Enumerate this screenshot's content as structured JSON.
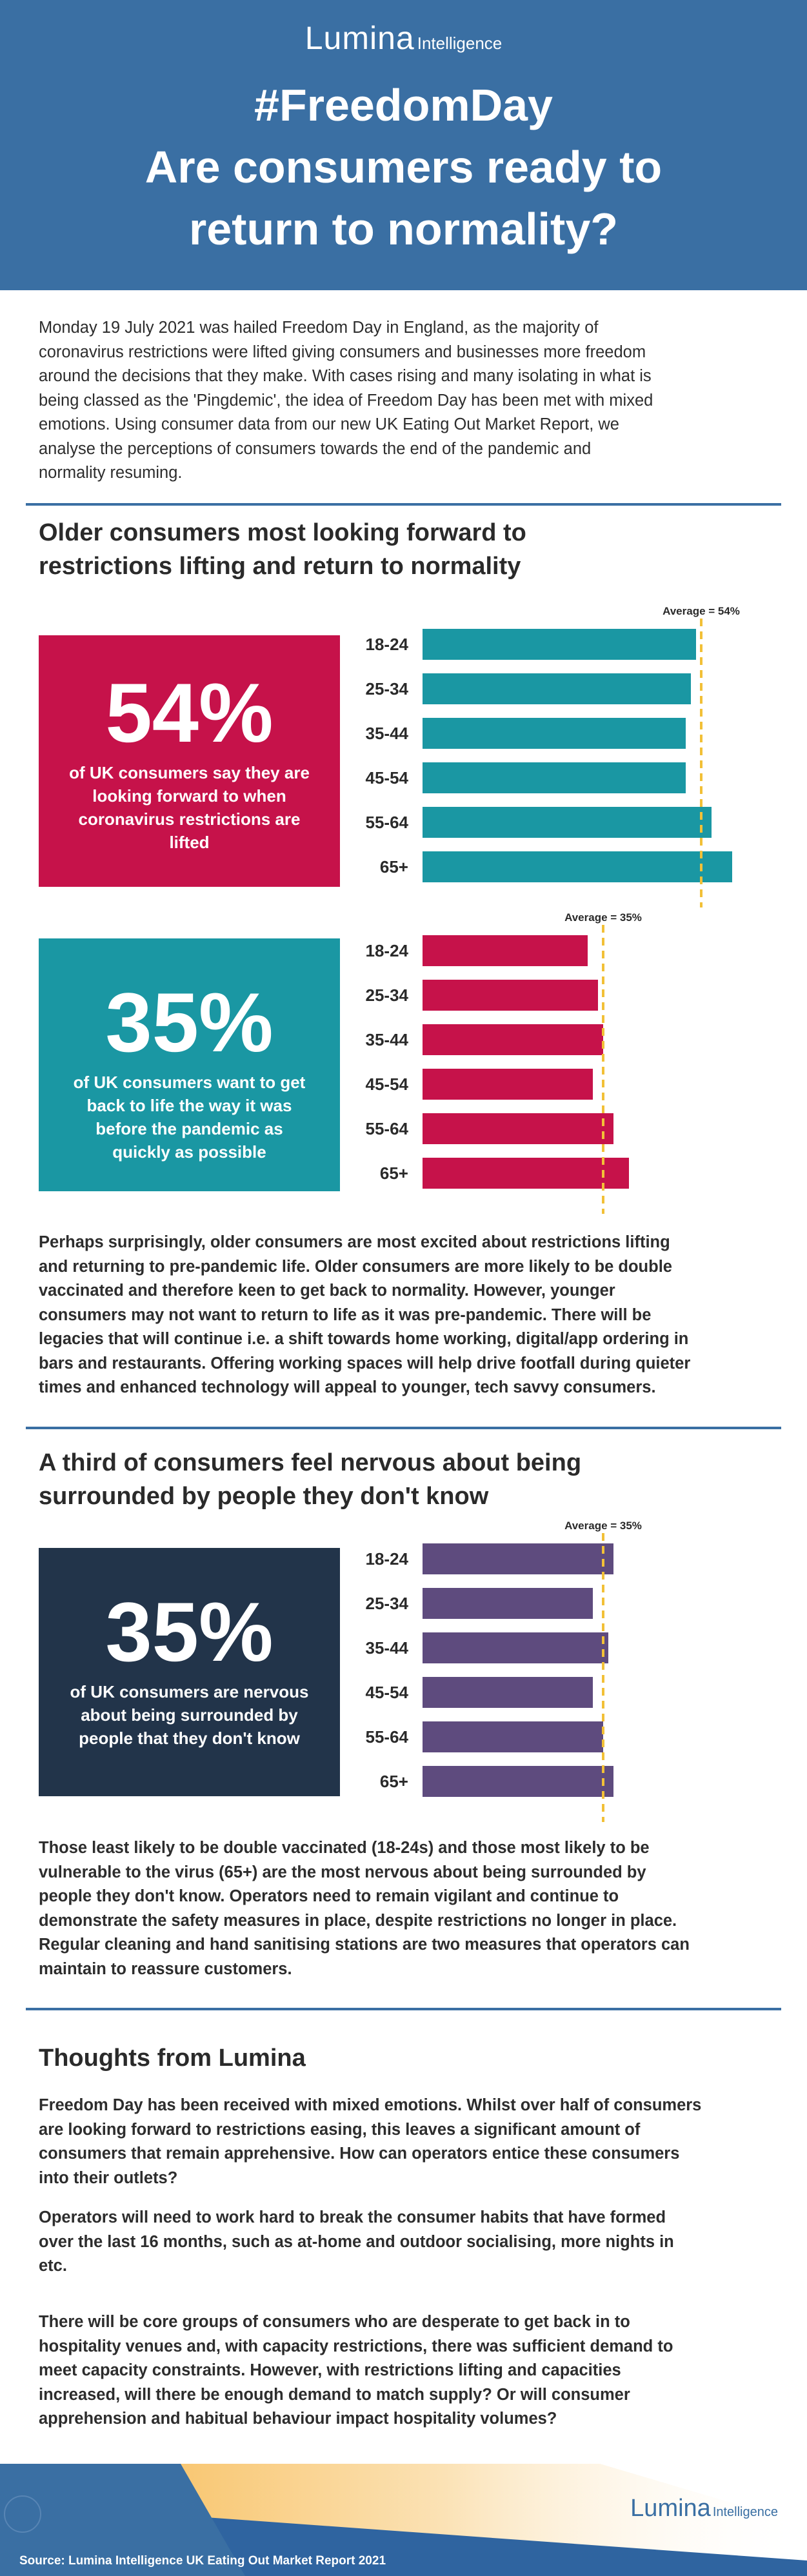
{
  "header": {
    "logo_brand": "Lumina",
    "logo_sub": "Intelligence",
    "title_line1": "#FreedomDay",
    "title_line2": "Are consumers ready to",
    "title_line3": "return to normality?"
  },
  "colors": {
    "header_bg": "#3a6fa3",
    "accent_red": "#c6124a",
    "accent_teal": "#1a97a3",
    "navy": "#22344a",
    "purple": "#5e4b7e",
    "average_line": "#f2c037"
  },
  "intro": [
    "Monday 19 July 2021 was hailed Freedom Day in England, as the majority of",
    "coronavirus restrictions were lifted giving consumers and businesses more freedom",
    "around the decisions that they make. With cases rising and many isolating in what is",
    "being classed as the 'Pingdemic', the idea of Freedom Day has been met with mixed",
    "emotions. Using consumer data from our new UK Eating Out Market Report, we",
    "analyse the perceptions of consumers towards the end of the pandemic and",
    "normality resuming."
  ],
  "section1": {
    "heading_line1": "Older consumers most looking forward to",
    "heading_line2": "restrictions lifting and return to normality",
    "stat1": {
      "value": "54%",
      "desc_lines": [
        "of UK consumers say they are",
        "looking forward to when",
        "coronavirus restrictions are",
        "lifted"
      ]
    },
    "stat2": {
      "value": "35%",
      "desc_lines": [
        "of UK consumers want to get",
        "back to life the way it was",
        "before the pandemic as",
        "quickly as possible"
      ]
    },
    "body": [
      "Perhaps surprisingly, older consumers are most excited about restrictions lifting",
      "and returning to pre-pandemic life. Older consumers are more likely to be double",
      "vaccinated and therefore keen to get back to normality. However, younger",
      "consumers may not want to return to life as it was pre-pandemic. There will be",
      "legacies that will continue i.e. a shift towards home working, digital/app ordering in",
      "bars and restaurants. Offering working spaces will help drive footfall during quieter",
      "times and enhanced technology will appeal to younger, tech savvy consumers."
    ]
  },
  "section2": {
    "heading_line1": "A third of consumers feel nervous about being",
    "heading_line2": "surrounded by people they don't know",
    "stat": {
      "value": "35%",
      "desc_lines": [
        "of UK consumers are nervous",
        "about being surrounded by",
        "people that they don't know"
      ]
    },
    "body": [
      "Those least likely to be double vaccinated (18-24s) and those most likely to be",
      "vulnerable to the virus (65+) are the most nervous about being surrounded by",
      "people they don't know. Operators need to remain vigilant and continue to",
      "demonstrate the safety measures in place, despite restrictions no longer in place.",
      "Regular cleaning and hand sanitising stations are two measures that operators can",
      "maintain to reassure customers."
    ]
  },
  "thoughts": {
    "heading": "Thoughts from Lumina",
    "para1": [
      "Freedom Day has been received with mixed emotions. Whilst over half of consumers",
      "are looking forward to restrictions easing, this leaves a significant amount of",
      "consumers that remain apprehensive. How can operators entice these consumers",
      "into their outlets?"
    ],
    "para2": [
      "Operators will need to work hard to break the consumer habits that have formed",
      "over the last 16 months, such as at-home and outdoor socialising, more nights in",
      "etc."
    ],
    "para3": [
      "There will be core groups of consumers who are desperate to get back in to",
      "hospitality venues and, with capacity restrictions, there was sufficient demand to",
      "meet capacity constraints. However, with restrictions lifting and capacities",
      "increased, will there be enough demand to match supply? Or will consumer",
      "apprehension and habitual behaviour impact hospitality volumes?"
    ]
  },
  "footer": {
    "logo_brand": "Lumina",
    "logo_sub": "Intelligence",
    "source": "Source: Lumina Intelligence UK Eating Out Market Report 2021"
  },
  "chart_data": [
    {
      "type": "bar",
      "orientation": "horizontal",
      "categories": [
        "18-24",
        "25-34",
        "35-44",
        "45-54",
        "55-64",
        "65+"
      ],
      "values": [
        53,
        52,
        51,
        51,
        56,
        60
      ],
      "average": 54,
      "average_label": "Average = 54%",
      "xlim": [
        0,
        60
      ],
      "color": "#1a97a3"
    },
    {
      "type": "bar",
      "orientation": "horizontal",
      "categories": [
        "18-24",
        "25-34",
        "35-44",
        "45-54",
        "55-64",
        "65+"
      ],
      "values": [
        32,
        34,
        35,
        33,
        37,
        40
      ],
      "average": 35,
      "average_label": "Average = 35%",
      "xlim": [
        0,
        60
      ],
      "color": "#c6124a"
    },
    {
      "type": "bar",
      "orientation": "horizontal",
      "categories": [
        "18-24",
        "25-34",
        "35-44",
        "45-54",
        "55-64",
        "65+"
      ],
      "values": [
        37,
        33,
        36,
        33,
        35,
        37
      ],
      "average": 35,
      "average_label": "Average = 35%",
      "xlim": [
        0,
        60
      ],
      "color": "#5e4b7e"
    }
  ]
}
